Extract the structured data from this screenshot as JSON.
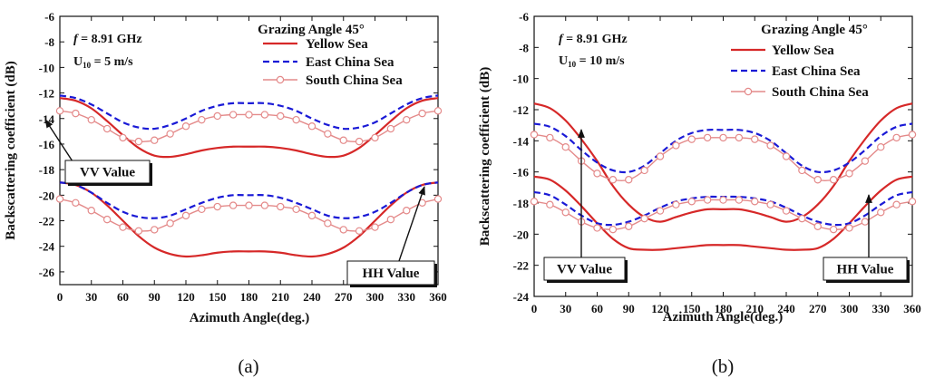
{
  "chart_data": [
    {
      "type": "line",
      "panel_label": "(a)",
      "xlabel": "Azimuth Angle(deg.)",
      "ylabel": "Backscattering coefficient (dB)",
      "xlim": [
        0,
        360
      ],
      "ylim": [
        -27,
        -6
      ],
      "x_ticks": [
        0,
        30,
        60,
        90,
        120,
        150,
        180,
        210,
        240,
        270,
        300,
        330,
        360
      ],
      "y_ticks": [
        -26,
        -24,
        -22,
        -20,
        -18,
        -16,
        -14,
        -12,
        -10,
        -8,
        -6
      ],
      "legend_title": "Grazing Angle 45°",
      "legend_position": "top-right",
      "params": {
        "freq_italic": "f",
        "freq_text": " = 8.91 GHz",
        "wind_base": "U",
        "wind_sub": "10",
        "wind_text": " = 5 m/s"
      },
      "annotations": {
        "vv": "VV Value",
        "hh": "HH Value"
      },
      "series": [
        {
          "name": "Yellow Sea",
          "group": "VV",
          "style": "solid",
          "x": [
            0,
            15,
            30,
            45,
            60,
            75,
            90,
            105,
            120,
            135,
            150,
            165,
            180,
            195,
            210,
            225,
            240,
            255,
            270,
            285,
            300,
            315,
            330,
            345,
            360
          ],
          "y": [
            -12.4,
            -12.6,
            -13.2,
            -14.2,
            -15.3,
            -16.3,
            -16.9,
            -17.0,
            -16.8,
            -16.5,
            -16.3,
            -16.2,
            -16.2,
            -16.2,
            -16.3,
            -16.5,
            -16.8,
            -17.0,
            -16.9,
            -16.3,
            -15.3,
            -14.2,
            -13.2,
            -12.6,
            -12.4
          ]
        },
        {
          "name": "East China Sea",
          "group": "VV",
          "style": "dashed",
          "x": [
            0,
            15,
            30,
            45,
            60,
            75,
            90,
            105,
            120,
            135,
            150,
            165,
            180,
            195,
            210,
            225,
            240,
            255,
            270,
            285,
            300,
            315,
            330,
            345,
            360
          ],
          "y": [
            -12.2,
            -12.4,
            -12.9,
            -13.6,
            -14.3,
            -14.7,
            -14.8,
            -14.5,
            -14.0,
            -13.4,
            -13.0,
            -12.8,
            -12.8,
            -12.8,
            -13.0,
            -13.4,
            -14.0,
            -14.5,
            -14.8,
            -14.7,
            -14.3,
            -13.6,
            -12.9,
            -12.4,
            -12.2
          ]
        },
        {
          "name": "South China Sea",
          "group": "VV",
          "style": "circle",
          "x": [
            0,
            15,
            30,
            45,
            60,
            75,
            90,
            105,
            120,
            135,
            150,
            165,
            180,
            195,
            210,
            225,
            240,
            255,
            270,
            285,
            300,
            315,
            330,
            345,
            360
          ],
          "y": [
            -13.4,
            -13.6,
            -14.1,
            -14.8,
            -15.5,
            -15.8,
            -15.7,
            -15.2,
            -14.6,
            -14.1,
            -13.8,
            -13.7,
            -13.7,
            -13.7,
            -13.8,
            -14.1,
            -14.6,
            -15.2,
            -15.7,
            -15.8,
            -15.5,
            -14.8,
            -14.1,
            -13.6,
            -13.4
          ]
        },
        {
          "name": "Yellow Sea",
          "group": "HH",
          "style": "solid",
          "x": [
            0,
            15,
            30,
            45,
            60,
            75,
            90,
            105,
            120,
            135,
            150,
            165,
            180,
            195,
            210,
            225,
            240,
            255,
            270,
            285,
            300,
            315,
            330,
            345,
            360
          ],
          "y": [
            -19.0,
            -19.2,
            -19.8,
            -20.8,
            -22.0,
            -23.2,
            -24.1,
            -24.6,
            -24.8,
            -24.7,
            -24.5,
            -24.4,
            -24.4,
            -24.4,
            -24.5,
            -24.7,
            -24.8,
            -24.6,
            -24.1,
            -23.2,
            -22.0,
            -20.8,
            -19.8,
            -19.2,
            -19.0
          ]
        },
        {
          "name": "East China Sea",
          "group": "HH",
          "style": "dashed",
          "x": [
            0,
            15,
            30,
            45,
            60,
            75,
            90,
            105,
            120,
            135,
            150,
            165,
            180,
            195,
            210,
            225,
            240,
            255,
            270,
            285,
            300,
            315,
            330,
            345,
            360
          ],
          "y": [
            -19.0,
            -19.2,
            -19.8,
            -20.6,
            -21.3,
            -21.7,
            -21.8,
            -21.6,
            -21.1,
            -20.6,
            -20.2,
            -20.0,
            -20.0,
            -20.0,
            -20.2,
            -20.6,
            -21.1,
            -21.6,
            -21.8,
            -21.7,
            -21.3,
            -20.6,
            -19.8,
            -19.2,
            -19.0
          ]
        },
        {
          "name": "South China Sea",
          "group": "HH",
          "style": "circle",
          "x": [
            0,
            15,
            30,
            45,
            60,
            75,
            90,
            105,
            120,
            135,
            150,
            165,
            180,
            195,
            210,
            225,
            240,
            255,
            270,
            285,
            300,
            315,
            330,
            345,
            360
          ],
          "y": [
            -20.3,
            -20.6,
            -21.2,
            -21.9,
            -22.5,
            -22.8,
            -22.7,
            -22.2,
            -21.6,
            -21.1,
            -20.9,
            -20.8,
            -20.8,
            -20.8,
            -20.9,
            -21.1,
            -21.6,
            -22.2,
            -22.7,
            -22.8,
            -22.5,
            -21.9,
            -21.2,
            -20.6,
            -20.3
          ]
        }
      ]
    },
    {
      "type": "line",
      "panel_label": "(b)",
      "xlabel": "Azimuth Angle(deg.)",
      "ylabel": "Backscattering coefficient (dB)",
      "xlim": [
        0,
        360
      ],
      "ylim": [
        -24,
        -6
      ],
      "x_ticks": [
        0,
        30,
        60,
        90,
        120,
        150,
        180,
        210,
        240,
        270,
        300,
        330,
        360
      ],
      "y_ticks": [
        -24,
        -22,
        -20,
        -18,
        -16,
        -14,
        -12,
        -10,
        -8,
        -6
      ],
      "legend_title": "Grazing Angle 45°",
      "legend_position": "top-right",
      "params": {
        "freq_italic": "f",
        "freq_text": " = 8.91 GHz",
        "wind_base": "U",
        "wind_sub": "10",
        "wind_text": " = 10 m/s"
      },
      "annotations": {
        "vv": "VV Value",
        "hh": "HH Value"
      },
      "series": [
        {
          "name": "Yellow Sea",
          "group": "VV",
          "style": "solid",
          "x": [
            0,
            15,
            30,
            45,
            60,
            75,
            90,
            105,
            120,
            135,
            150,
            165,
            180,
            195,
            210,
            225,
            240,
            255,
            270,
            285,
            300,
            315,
            330,
            345,
            360
          ],
          "y": [
            -11.6,
            -11.9,
            -12.7,
            -13.9,
            -15.3,
            -16.9,
            -18.1,
            -18.9,
            -19.2,
            -18.9,
            -18.6,
            -18.4,
            -18.4,
            -18.4,
            -18.6,
            -18.9,
            -19.2,
            -18.9,
            -18.1,
            -16.9,
            -15.3,
            -13.9,
            -12.7,
            -11.9,
            -11.6
          ]
        },
        {
          "name": "East China Sea",
          "group": "VV",
          "style": "dashed",
          "x": [
            0,
            15,
            30,
            45,
            60,
            75,
            90,
            105,
            120,
            135,
            150,
            165,
            180,
            195,
            210,
            225,
            240,
            255,
            270,
            285,
            300,
            315,
            330,
            345,
            360
          ],
          "y": [
            -12.9,
            -13.1,
            -13.7,
            -14.6,
            -15.4,
            -15.9,
            -16.0,
            -15.6,
            -14.8,
            -14.0,
            -13.5,
            -13.3,
            -13.3,
            -13.3,
            -13.5,
            -14.0,
            -14.8,
            -15.6,
            -16.0,
            -15.9,
            -15.4,
            -14.6,
            -13.7,
            -13.1,
            -12.9
          ]
        },
        {
          "name": "South China Sea",
          "group": "VV",
          "style": "circle",
          "x": [
            0,
            15,
            30,
            45,
            60,
            75,
            90,
            105,
            120,
            135,
            150,
            165,
            180,
            195,
            210,
            225,
            240,
            255,
            270,
            285,
            300,
            315,
            330,
            345,
            360
          ],
          "y": [
            -13.6,
            -13.8,
            -14.4,
            -15.3,
            -16.1,
            -16.5,
            -16.5,
            -15.9,
            -15.0,
            -14.3,
            -13.9,
            -13.8,
            -13.8,
            -13.8,
            -13.9,
            -14.3,
            -15.0,
            -15.9,
            -16.5,
            -16.5,
            -16.1,
            -15.3,
            -14.4,
            -13.8,
            -13.6
          ]
        },
        {
          "name": "Yellow Sea",
          "group": "HH",
          "style": "solid",
          "x": [
            0,
            15,
            30,
            45,
            60,
            75,
            90,
            105,
            120,
            135,
            150,
            165,
            180,
            195,
            210,
            225,
            240,
            255,
            270,
            285,
            300,
            315,
            330,
            345,
            360
          ],
          "y": [
            -16.3,
            -16.5,
            -17.2,
            -18.2,
            -19.3,
            -20.3,
            -20.9,
            -21.0,
            -21.0,
            -20.9,
            -20.8,
            -20.7,
            -20.7,
            -20.7,
            -20.8,
            -20.9,
            -21.0,
            -21.0,
            -20.9,
            -20.3,
            -19.3,
            -18.2,
            -17.2,
            -16.5,
            -16.3
          ]
        },
        {
          "name": "East China Sea",
          "group": "HH",
          "style": "dashed",
          "x": [
            0,
            15,
            30,
            45,
            60,
            75,
            90,
            105,
            120,
            135,
            150,
            165,
            180,
            195,
            210,
            225,
            240,
            255,
            270,
            285,
            300,
            315,
            330,
            345,
            360
          ],
          "y": [
            -17.3,
            -17.5,
            -18.1,
            -18.8,
            -19.3,
            -19.4,
            -19.2,
            -18.8,
            -18.3,
            -17.9,
            -17.7,
            -17.6,
            -17.6,
            -17.6,
            -17.7,
            -17.9,
            -18.3,
            -18.8,
            -19.2,
            -19.4,
            -19.3,
            -18.8,
            -18.1,
            -17.5,
            -17.3
          ]
        },
        {
          "name": "South China Sea",
          "group": "HH",
          "style": "circle",
          "x": [
            0,
            15,
            30,
            45,
            60,
            75,
            90,
            105,
            120,
            135,
            150,
            165,
            180,
            195,
            210,
            225,
            240,
            255,
            270,
            285,
            300,
            315,
            330,
            345,
            360
          ],
          "y": [
            -17.9,
            -18.1,
            -18.6,
            -19.2,
            -19.6,
            -19.7,
            -19.5,
            -19.0,
            -18.5,
            -18.1,
            -17.9,
            -17.8,
            -17.8,
            -17.8,
            -17.9,
            -18.1,
            -18.5,
            -19.0,
            -19.5,
            -19.7,
            -19.6,
            -19.2,
            -18.6,
            -18.1,
            -17.9
          ]
        }
      ]
    }
  ],
  "colors": {
    "yellow_sea": "#d62828",
    "east_china_sea": "#1a1ad6",
    "south_china_sea": "#e48a8a",
    "axis": "#111111"
  }
}
